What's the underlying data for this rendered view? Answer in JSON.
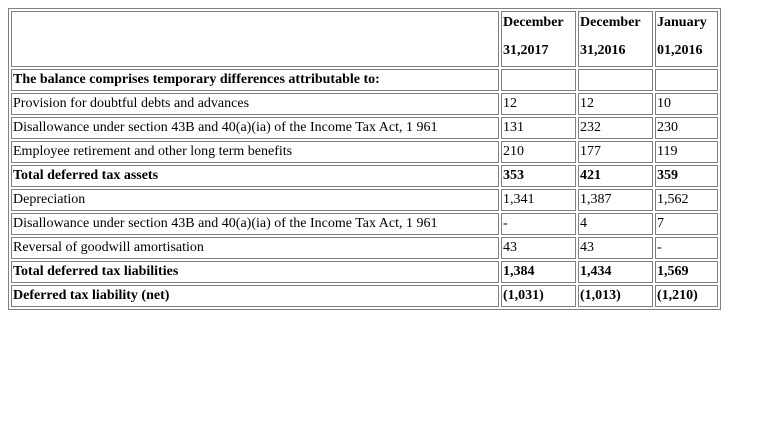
{
  "columns": [
    {
      "line1": "December",
      "line2": "31,2017"
    },
    {
      "line1": "December",
      "line2": "31,2016"
    },
    {
      "line1": "January",
      "line2": "01,2016"
    }
  ],
  "rows": [
    {
      "label": "The balance comprises temporary differences attributable to:",
      "bold": true,
      "values": [
        "",
        "",
        ""
      ]
    },
    {
      "label": "Provision for doubtful debts and advances",
      "bold": false,
      "values": [
        "12",
        "12",
        "10"
      ]
    },
    {
      "label": "Disallowance under section 43B and 40(a)(ia) of the Income Tax Act, 1 961",
      "bold": false,
      "values": [
        "131",
        "232",
        "230"
      ]
    },
    {
      "label": "Employee retirement and other long term benefits",
      "bold": false,
      "values": [
        "210",
        "177",
        "119"
      ]
    },
    {
      "label": "Total deferred tax assets",
      "bold": true,
      "values": [
        "353",
        "421",
        "359"
      ]
    },
    {
      "label": "Depreciation",
      "bold": false,
      "values": [
        "1,341",
        "1,387",
        "1,562"
      ]
    },
    {
      "label": "Disallowance under section 43B and 40(a)(ia) of the Income Tax Act, 1 961",
      "bold": false,
      "values": [
        "-",
        "4",
        "7"
      ]
    },
    {
      "label": "Reversal of goodwill amortisation",
      "bold": false,
      "values": [
        "43",
        "43",
        "-"
      ]
    },
    {
      "label": "Total deferred tax liabilities",
      "bold": true,
      "values": [
        "1,384",
        "1,434",
        "1,569"
      ]
    },
    {
      "label": "Deferred tax liability (net)",
      "bold": true,
      "values": [
        "(1,031)",
        "(1,013)",
        "(1,210)"
      ]
    }
  ]
}
